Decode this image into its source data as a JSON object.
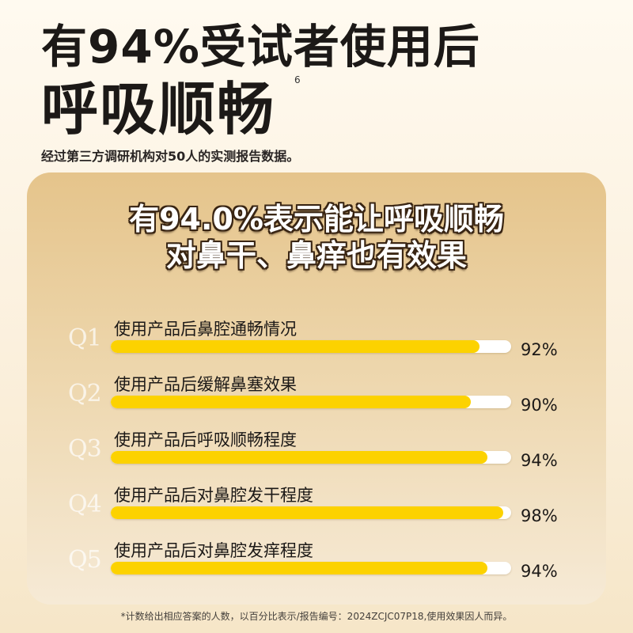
{
  "header": {
    "line1": "有94%受试者使用后",
    "line2": "呼吸顺畅",
    "footnote_ref": "6",
    "subline": "经过第三方调研机构对50人的实测报告数据。"
  },
  "card": {
    "title_line1": "有94.0%表示能让呼吸顺畅",
    "title_line2": "对鼻干、鼻痒也有效果"
  },
  "survey": [
    {
      "q": "Q1",
      "label": "使用产品后鼻腔通畅情况",
      "percent": 92,
      "percent_text": "92%"
    },
    {
      "q": "Q2",
      "label": "使用产品后缓解鼻塞效果",
      "percent": 90,
      "percent_text": "90%"
    },
    {
      "q": "Q3",
      "label": "使用产品后呼吸顺畅程度",
      "percent": 94,
      "percent_text": "94%"
    },
    {
      "q": "Q4",
      "label": "使用产品后对鼻腔发干程度",
      "percent": 98,
      "percent_text": "98%"
    },
    {
      "q": "Q5",
      "label": "使用产品后对鼻腔发痒程度",
      "percent": 94,
      "percent_text": "94%"
    }
  ],
  "disclaimer": "*计数给出相应答案的人数，以百分比表示/报告编号：2024ZCJC07P18,使用效果因人而异。",
  "colors": {
    "bar_fill": "#fcd200",
    "bar_track": "#ffffff",
    "card_top": "#e5c48b",
    "card_bottom": "#f6ead6"
  }
}
